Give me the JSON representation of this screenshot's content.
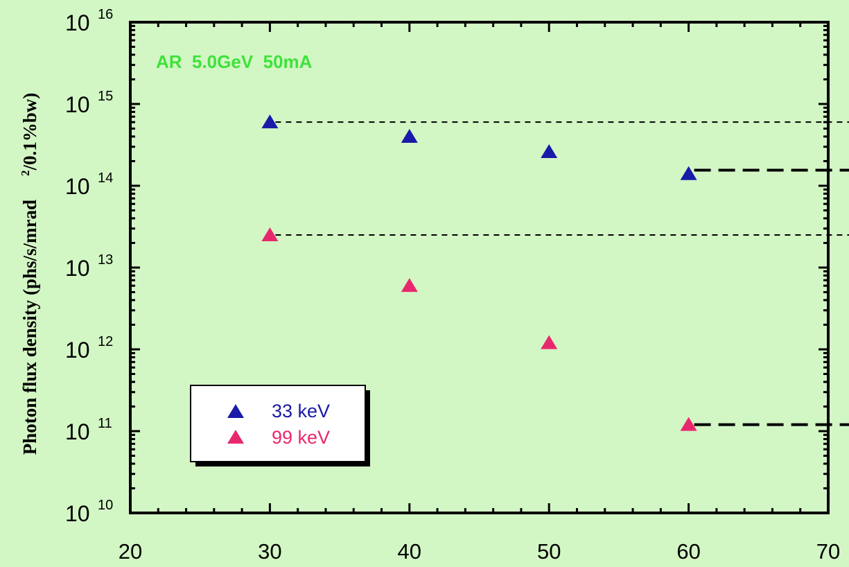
{
  "chart_data": {
    "type": "scatter",
    "title": "",
    "annotation": "AR  5.0GeV  50mA",
    "xlabel": "",
    "ylabel_main": "Photon flux density (phs/s/mrad",
    "ylabel_tail": "/0.1%bw)",
    "ylabel_sup": "2",
    "xlim": [
      20,
      70
    ],
    "ylim": [
      10000000000.0,
      1e+16
    ],
    "yscale": "log",
    "x_ticks": [
      20,
      30,
      40,
      50,
      60,
      70
    ],
    "y_ticks": [
      {
        "value": 10000000000.0,
        "base": "10",
        "exp": "10"
      },
      {
        "value": 100000000000.0,
        "base": "10",
        "exp": "11"
      },
      {
        "value": 1000000000000.0,
        "base": "10",
        "exp": "12"
      },
      {
        "value": 10000000000000.0,
        "base": "10",
        "exp": "13"
      },
      {
        "value": 100000000000000.0,
        "base": "10",
        "exp": "14"
      },
      {
        "value": 1000000000000000.0,
        "base": "10",
        "exp": "15"
      },
      {
        "value": 1e+16,
        "base": "10",
        "exp": "16"
      }
    ],
    "grid": false,
    "legend_position": "bottom-left",
    "series": [
      {
        "name": "33 keV",
        "color": "#1a1aa8",
        "marker": "triangle",
        "x": [
          30,
          40,
          50,
          60
        ],
        "y": [
          600000000000000.0,
          400000000000000.0,
          260000000000000.0,
          140000000000000.0
        ]
      },
      {
        "name": "99 keV",
        "color": "#e8286e",
        "marker": "triangle",
        "x": [
          30,
          40,
          50,
          60
        ],
        "y": [
          25000000000000.0,
          6000000000000.0,
          1200000000000.0,
          120000000000.0
        ]
      }
    ],
    "reference_lines": [
      {
        "style": "short-dash",
        "x_from": 30,
        "x_to": 70,
        "y": 600000000000000.0
      },
      {
        "style": "short-dash",
        "x_from": 30,
        "x_to": 70,
        "y": 25000000000000.0
      },
      {
        "style": "long-dash",
        "x_from": 60,
        "x_to": 70,
        "y": 155000000000000.0
      },
      {
        "style": "long-dash",
        "x_from": 60,
        "x_to": 70,
        "y": 120000000000.0
      }
    ],
    "colors": {
      "background": "#d3f6c5",
      "annotation": "#3ee23a",
      "axis": "#000000",
      "legend_fill": "#ffffff"
    }
  }
}
